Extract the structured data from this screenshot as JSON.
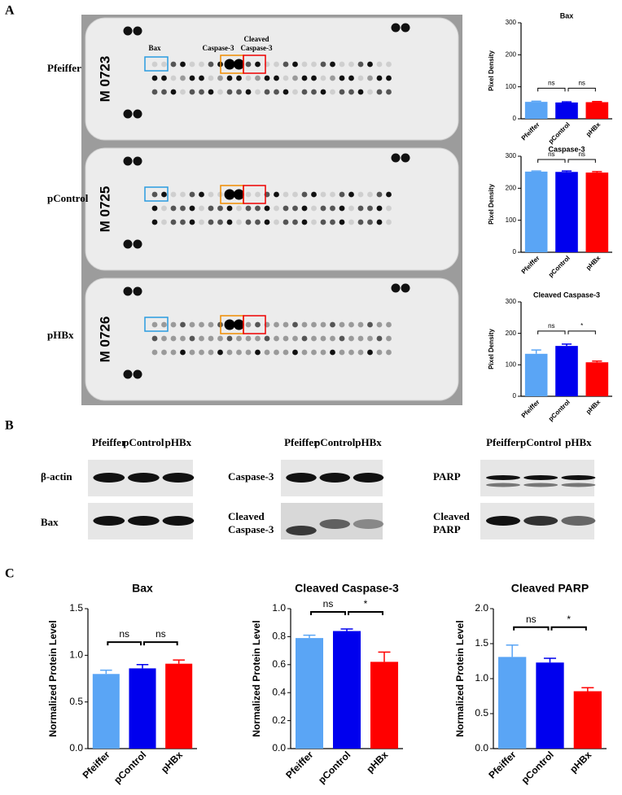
{
  "panel_labels": [
    "A",
    "B",
    "C"
  ],
  "array": {
    "samples": [
      {
        "name": "Pfeiffer",
        "membrane": "M 0723"
      },
      {
        "name": "pControl",
        "membrane": "M 0725"
      },
      {
        "name": "pHBx",
        "membrane": "M 0726"
      }
    ],
    "box_labels": {
      "bax": "Bax",
      "caspase3": "Caspase-3",
      "cleaved_caspase3": [
        "Cleaved",
        "Caspase-3"
      ]
    }
  },
  "blots": {
    "lanes": [
      "Pfeiffer",
      "pControl",
      "pHBx"
    ],
    "rows": [
      "β-actin",
      "Bax",
      "Caspase-3",
      [
        "Cleaved",
        "Caspase-3"
      ],
      "PARP",
      [
        "Cleaved",
        "PARP"
      ]
    ]
  },
  "chart_data": [
    {
      "type": "bar",
      "title": "Bax",
      "ylabel": "Pixel Density",
      "categories": [
        "Pfeiffer",
        "pControl",
        "pHBx"
      ],
      "values": [
        53,
        51,
        52
      ],
      "errors": [
        2,
        2,
        2
      ],
      "colors": [
        "#5aa5f5",
        "#0000ee",
        "#ff0000"
      ],
      "ylim": [
        0,
        300
      ],
      "yticks": [
        0,
        100,
        200,
        300
      ],
      "annotations": [
        "ns",
        "ns"
      ]
    },
    {
      "type": "bar",
      "title": "Caspase-3",
      "ylabel": "Pixel Density",
      "categories": [
        "Pfeiffer",
        "pControl",
        "pHBx"
      ],
      "values": [
        252,
        251,
        249
      ],
      "errors": [
        2,
        3,
        3
      ],
      "colors": [
        "#5aa5f5",
        "#0000ee",
        "#ff0000"
      ],
      "ylim": [
        0,
        300
      ],
      "yticks": [
        0,
        100,
        200,
        300
      ],
      "annotations": [
        "ns",
        "ns"
      ]
    },
    {
      "type": "bar",
      "title": "Cleaved Caspase-3",
      "ylabel": "Pixel Density",
      "categories": [
        "Pfeiffer",
        "pControl",
        "pHBx"
      ],
      "values": [
        135,
        160,
        108
      ],
      "errors": [
        12,
        6,
        4
      ],
      "colors": [
        "#5aa5f5",
        "#0000ee",
        "#ff0000"
      ],
      "ylim": [
        0,
        300
      ],
      "yticks": [
        0,
        100,
        200,
        300
      ],
      "annotations": [
        "ns",
        "*"
      ]
    },
    {
      "type": "bar",
      "title": "Bax",
      "ylabel": "Normalized Protein Level",
      "categories": [
        "Pfeiffer",
        "pControl",
        "pHBx"
      ],
      "values": [
        0.8,
        0.86,
        0.91
      ],
      "errors": [
        0.04,
        0.04,
        0.04
      ],
      "colors": [
        "#5aa5f5",
        "#0000ee",
        "#ff0000"
      ],
      "ylim": [
        0,
        1.5
      ],
      "yticks": [
        {
          "value": 0,
          "label": "0.0"
        },
        0.5,
        {
          "value": 1,
          "label": "1.0"
        },
        1.5
      ],
      "annotations": [
        "ns",
        "ns"
      ]
    },
    {
      "type": "bar",
      "title": "Cleaved Caspase-3",
      "ylabel": "Normalized Protein Level",
      "categories": [
        "Pfeiffer",
        "pControl",
        "pHBx"
      ],
      "values": [
        0.79,
        0.84,
        0.62
      ],
      "errors": [
        0.02,
        0.015,
        0.07
      ],
      "colors": [
        "#5aa5f5",
        "#0000ee",
        "#ff0000"
      ],
      "ylim": [
        0,
        1
      ],
      "yticks": [
        {
          "value": 0,
          "label": "0.0"
        },
        0.2,
        0.4,
        0.6,
        0.8,
        {
          "value": 1,
          "label": "1.0"
        }
      ],
      "annotations": [
        "ns",
        "*"
      ]
    },
    {
      "type": "bar",
      "title": "Cleaved PARP",
      "ylabel": "Normalized Protein Level",
      "categories": [
        "Pfeiffer",
        "pControl",
        "pHBx"
      ],
      "values": [
        1.31,
        1.23,
        0.82
      ],
      "errors": [
        0.17,
        0.06,
        0.05
      ],
      "colors": [
        "#5aa5f5",
        "#0000ee",
        "#ff0000"
      ],
      "ylim": [
        0,
        2
      ],
      "yticks": [
        {
          "value": 0,
          "label": "0.0"
        },
        0.5,
        {
          "value": 1,
          "label": "1.0"
        },
        1.5,
        {
          "value": 2,
          "label": "2.0"
        }
      ],
      "annotations": [
        "ns",
        "*"
      ]
    }
  ]
}
